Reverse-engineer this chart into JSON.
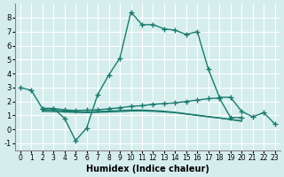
{
  "xlabel": "Humidex (Indice chaleur)",
  "background_color": "#d5eeed",
  "grid_color": "#ffffff",
  "line_color": "#1a7a6e",
  "x_values": [
    0,
    1,
    2,
    3,
    4,
    5,
    6,
    7,
    8,
    9,
    10,
    11,
    12,
    13,
    14,
    15,
    16,
    17,
    18,
    19,
    20,
    21,
    22,
    23
  ],
  "main_line": [
    3.0,
    2.8,
    1.5,
    1.5,
    0.8,
    -0.8,
    0.1,
    2.5,
    3.9,
    5.1,
    8.4,
    7.5,
    7.5,
    7.2,
    7.1,
    6.8,
    7.0,
    4.3,
    2.3,
    2.3,
    1.3,
    0.9,
    1.2,
    0.4
  ],
  "flat1_x": [
    2,
    3,
    4,
    5,
    6,
    7,
    8,
    9,
    10,
    11,
    12,
    13,
    14,
    15,
    16,
    17,
    18,
    19,
    20
  ],
  "flat1_y": [
    1.5,
    1.5,
    1.4,
    1.35,
    1.38,
    1.4,
    1.48,
    1.55,
    1.65,
    1.7,
    1.8,
    1.85,
    1.9,
    2.0,
    2.1,
    2.2,
    2.25,
    0.85,
    0.85
  ],
  "flat2_x": [
    2,
    3,
    4,
    5,
    6,
    7,
    8,
    9,
    10,
    11,
    12,
    13,
    14,
    15,
    16,
    17,
    18,
    19,
    20
  ],
  "flat2_y": [
    1.3,
    1.28,
    1.25,
    1.22,
    1.2,
    1.22,
    1.25,
    1.28,
    1.32,
    1.33,
    1.3,
    1.25,
    1.2,
    1.1,
    1.0,
    0.9,
    0.82,
    0.7,
    0.62
  ],
  "flat3_x": [
    2,
    3,
    4,
    5,
    6,
    7,
    8,
    9,
    10,
    11,
    12,
    13,
    14,
    15,
    16,
    17,
    18,
    19,
    20
  ],
  "flat3_y": [
    1.4,
    1.38,
    1.32,
    1.28,
    1.25,
    1.28,
    1.32,
    1.35,
    1.38,
    1.38,
    1.35,
    1.3,
    1.22,
    1.12,
    1.02,
    0.92,
    0.82,
    0.72,
    0.58
  ],
  "ylim": [
    -1.5,
    9.0
  ],
  "xlim": [
    -0.5,
    23.5
  ],
  "yticks": [
    -1,
    0,
    1,
    2,
    3,
    4,
    5,
    6,
    7,
    8
  ],
  "xticks": [
    0,
    1,
    2,
    3,
    4,
    5,
    6,
    7,
    8,
    9,
    10,
    11,
    12,
    13,
    14,
    15,
    16,
    17,
    18,
    19,
    20,
    21,
    22,
    23
  ]
}
